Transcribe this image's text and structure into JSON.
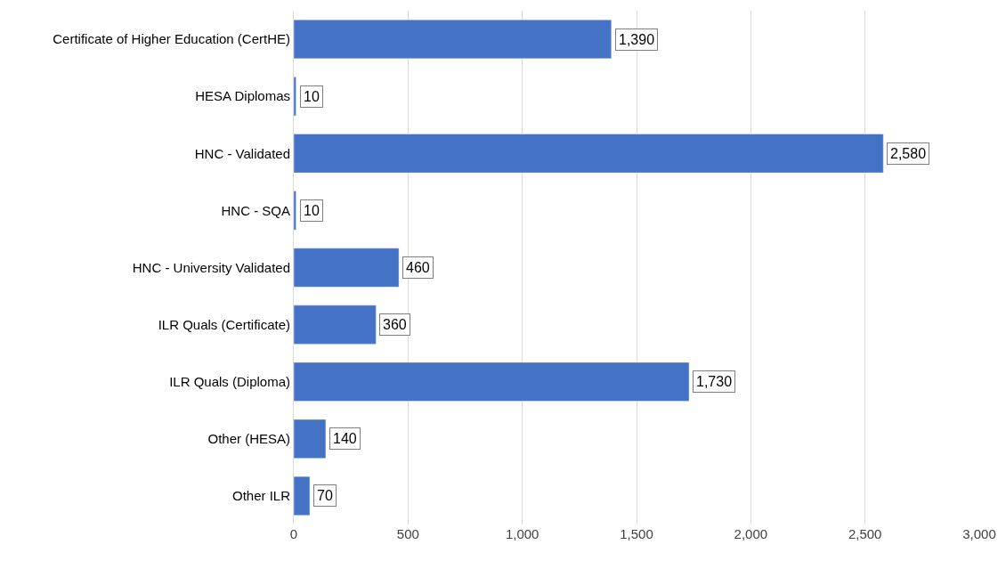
{
  "chart_data": {
    "type": "bar",
    "orientation": "horizontal",
    "categories": [
      "Certificate of Higher Education (CertHE)",
      "HESA Diplomas",
      "HNC - Validated",
      "HNC - SQA",
      "HNC - University Validated",
      "ILR Quals (Certificate)",
      "ILR Quals (Diploma)",
      "Other (HESA)",
      "Other ILR"
    ],
    "values": [
      1390,
      10,
      2580,
      10,
      460,
      360,
      1730,
      140,
      70
    ],
    "color": "#4472c4",
    "xlim": [
      0,
      3000
    ],
    "xticks": [
      {
        "value": 0,
        "label": "0"
      },
      {
        "value": 500,
        "label": "500"
      },
      {
        "value": 1000,
        "label": "1,000"
      },
      {
        "value": 1500,
        "label": "1,500"
      },
      {
        "value": 2000,
        "label": "2,000"
      },
      {
        "value": 2500,
        "label": "2,500"
      },
      {
        "value": 3000,
        "label": "3,000"
      }
    ],
    "value_labels": [
      "1,390",
      "10",
      "2,580",
      "10",
      "460",
      "360",
      "1,730",
      "140",
      "70"
    ],
    "grid": "x"
  }
}
